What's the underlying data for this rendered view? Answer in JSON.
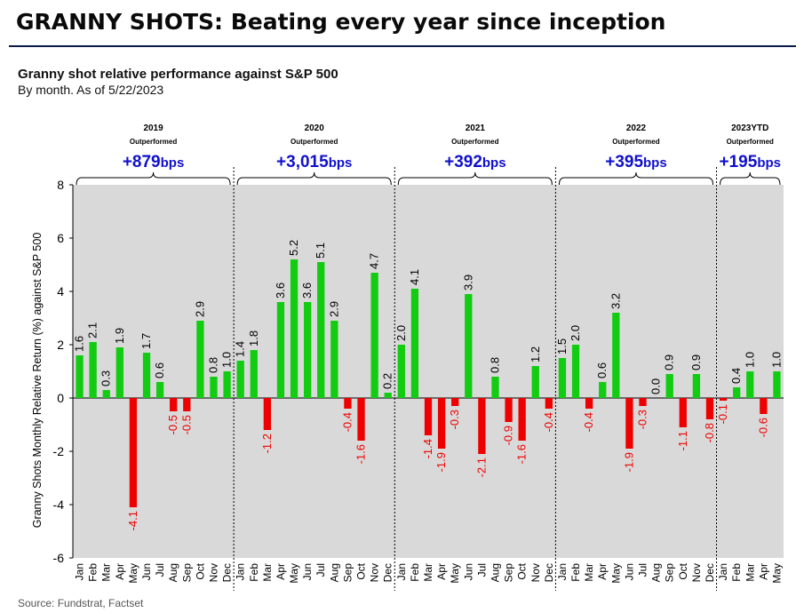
{
  "headline": "GRANNY SHOTS: Beating every year since inception",
  "source": "Source: Fundstrat, Factset",
  "chart_data": {
    "type": "bar",
    "title": "Granny shot relative performance against S&P 500",
    "subtitle": "By month. As of 5/22/2023",
    "ylabel": "Granny Shots Monthly Relative Return (%) against S&P 500",
    "ylim": [
      -6,
      8
    ],
    "yticks": [
      "8",
      "6",
      "4",
      "2",
      "0",
      "-2",
      "-4",
      "-6"
    ],
    "grid": false,
    "background": "#d9d9d9",
    "positive_color": "#11cc11",
    "negative_color": "#ee0000",
    "annotation_color": "#1010cc",
    "groups": [
      {
        "year": "2019",
        "caption": "Outperformed",
        "bps_value": "+879",
        "bps_unit": "bps",
        "months": [
          "Jan",
          "Feb",
          "Mar",
          "Apr",
          "May",
          "Jun",
          "Jul",
          "Aug",
          "Sep",
          "Oct",
          "Nov",
          "Dec"
        ],
        "values": [
          1.6,
          2.1,
          0.3,
          1.9,
          -4.1,
          1.7,
          0.6,
          -0.5,
          -0.5,
          2.9,
          0.8,
          1.0
        ],
        "labels": [
          "1.6",
          "2.1",
          "0.3",
          "1.9",
          "-4.1",
          "1.7",
          "0.6",
          "-0.5",
          "-0.5",
          "2.9",
          "0.8",
          "1.0"
        ]
      },
      {
        "year": "2020",
        "caption": "Outperformed",
        "bps_value": "+3,015",
        "bps_unit": "bps",
        "months": [
          "Jan",
          "Feb",
          "Mar",
          "Apr",
          "May",
          "Jun",
          "Jul",
          "Aug",
          "Sep",
          "Oct",
          "Nov",
          "Dec"
        ],
        "values": [
          1.4,
          1.8,
          -1.2,
          3.6,
          5.2,
          3.6,
          5.1,
          2.9,
          -0.4,
          -1.6,
          4.7,
          0.2
        ],
        "labels": [
          "1.4",
          "1.8",
          "-1.2",
          "3.6",
          "5.2",
          "3.6",
          "5.1",
          "2.9",
          "-0.4",
          "-1.6",
          "4.7",
          "0.2"
        ]
      },
      {
        "year": "2021",
        "caption": "Outperformed",
        "bps_value": "+392",
        "bps_unit": "bps",
        "months": [
          "Jan",
          "Feb",
          "Mar",
          "Apr",
          "May",
          "Jun",
          "Jul",
          "Aug",
          "Sep",
          "Oct",
          "Nov",
          "Dec"
        ],
        "values": [
          2.0,
          4.1,
          -1.4,
          -1.9,
          -0.3,
          3.9,
          -2.1,
          0.8,
          -0.9,
          -1.6,
          1.2,
          -0.4
        ],
        "labels": [
          "2.0",
          "4.1",
          "-1.4",
          "-1.9",
          "-0.3",
          "3.9",
          "-2.1",
          "0.8",
          "-0.9",
          "-1.6",
          "1.2",
          "-0.4"
        ]
      },
      {
        "year": "2022",
        "caption": "Outperformed",
        "bps_value": "+395",
        "bps_unit": "bps",
        "months": [
          "Jan",
          "Feb",
          "Mar",
          "Apr",
          "May",
          "Jun",
          "Jul",
          "Aug",
          "Sep",
          "Oct",
          "Nov",
          "Dec"
        ],
        "values": [
          1.5,
          2.0,
          -0.4,
          0.6,
          3.2,
          -1.9,
          -0.3,
          0.0,
          0.9,
          -1.1,
          0.9,
          -0.8
        ],
        "labels": [
          "1.5",
          "2.0",
          "-0.4",
          "0.6",
          "3.2",
          "-1.9",
          "-0.3",
          "0.0",
          "0.9",
          "-1.1",
          "0.9",
          "-0.8"
        ]
      },
      {
        "year": "2023YTD",
        "caption": "Outperformed",
        "bps_value": "+195",
        "bps_unit": "bps",
        "months": [
          "Jan",
          "Feb",
          "Mar",
          "Apr",
          "May"
        ],
        "values": [
          -0.1,
          0.4,
          1.0,
          -0.6,
          1.0
        ],
        "labels": [
          "-0.1",
          "0.4",
          "1.0",
          "-0.6",
          "1.0"
        ]
      }
    ]
  }
}
